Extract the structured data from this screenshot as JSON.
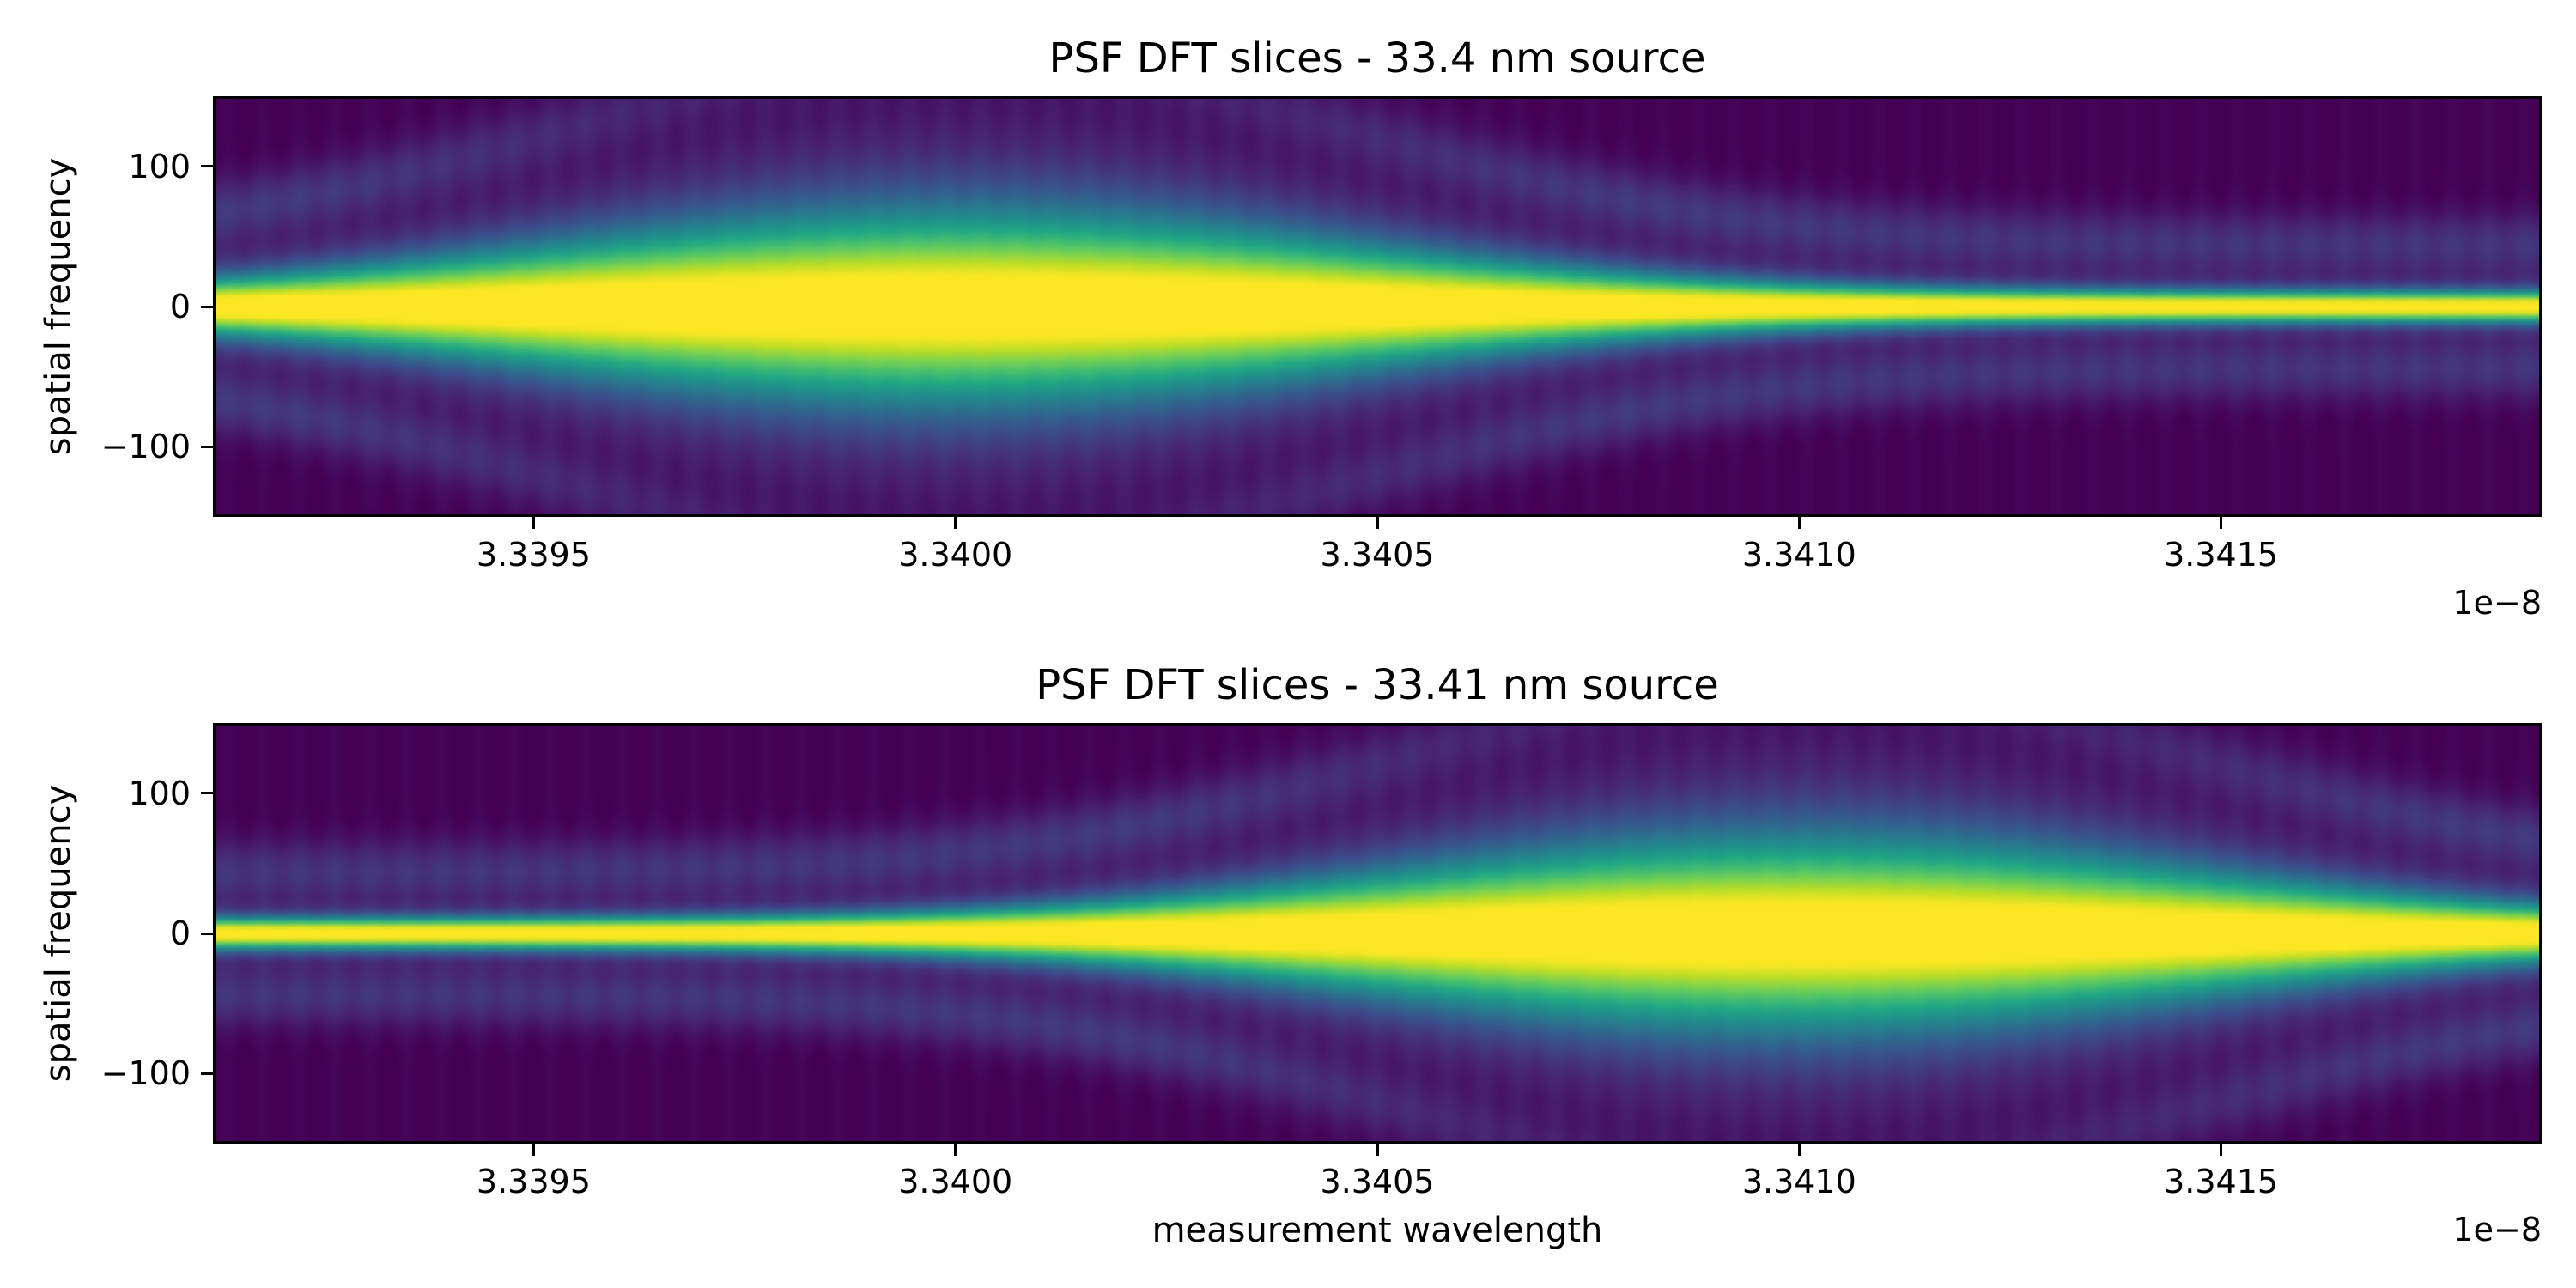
{
  "chart_data": [
    {
      "type": "heatmap",
      "title": "PSF DFT slices - 33.4 nm source",
      "xlabel": "",
      "ylabel": "spatial frequency",
      "x_offset_label": "1e−8",
      "xlim": [
        3.33912,
        3.34188
      ],
      "ylim": [
        -150,
        150
      ],
      "xticks": [
        3.3395,
        3.34,
        3.3405,
        3.341,
        3.3415
      ],
      "xtick_labels": [
        "3.3395",
        "3.3400",
        "3.3405",
        "3.3410",
        "3.3415"
      ],
      "yticks": [
        100,
        0,
        -100
      ],
      "ytick_labels": [
        "100",
        "0",
        "−100"
      ],
      "source_wavelength": 3.34,
      "peak_position_x": 3.34,
      "colormap": "viridis",
      "grid": false
    },
    {
      "type": "heatmap",
      "title": "PSF DFT slices - 33.41 nm source",
      "xlabel": "measurement wavelength",
      "ylabel": "spatial frequency",
      "x_offset_label": "1e−8",
      "xlim": [
        3.33912,
        3.34188
      ],
      "ylim": [
        -150,
        150
      ],
      "xticks": [
        3.3395,
        3.34,
        3.3405,
        3.341,
        3.3415
      ],
      "xtick_labels": [
        "3.3395",
        "3.3400",
        "3.3405",
        "3.3410",
        "3.3415"
      ],
      "yticks": [
        100,
        0,
        -100
      ],
      "ytick_labels": [
        "100",
        "0",
        "−100"
      ],
      "source_wavelength": 3.341,
      "peak_position_x": 3.341,
      "colormap": "viridis",
      "grid": false
    }
  ]
}
